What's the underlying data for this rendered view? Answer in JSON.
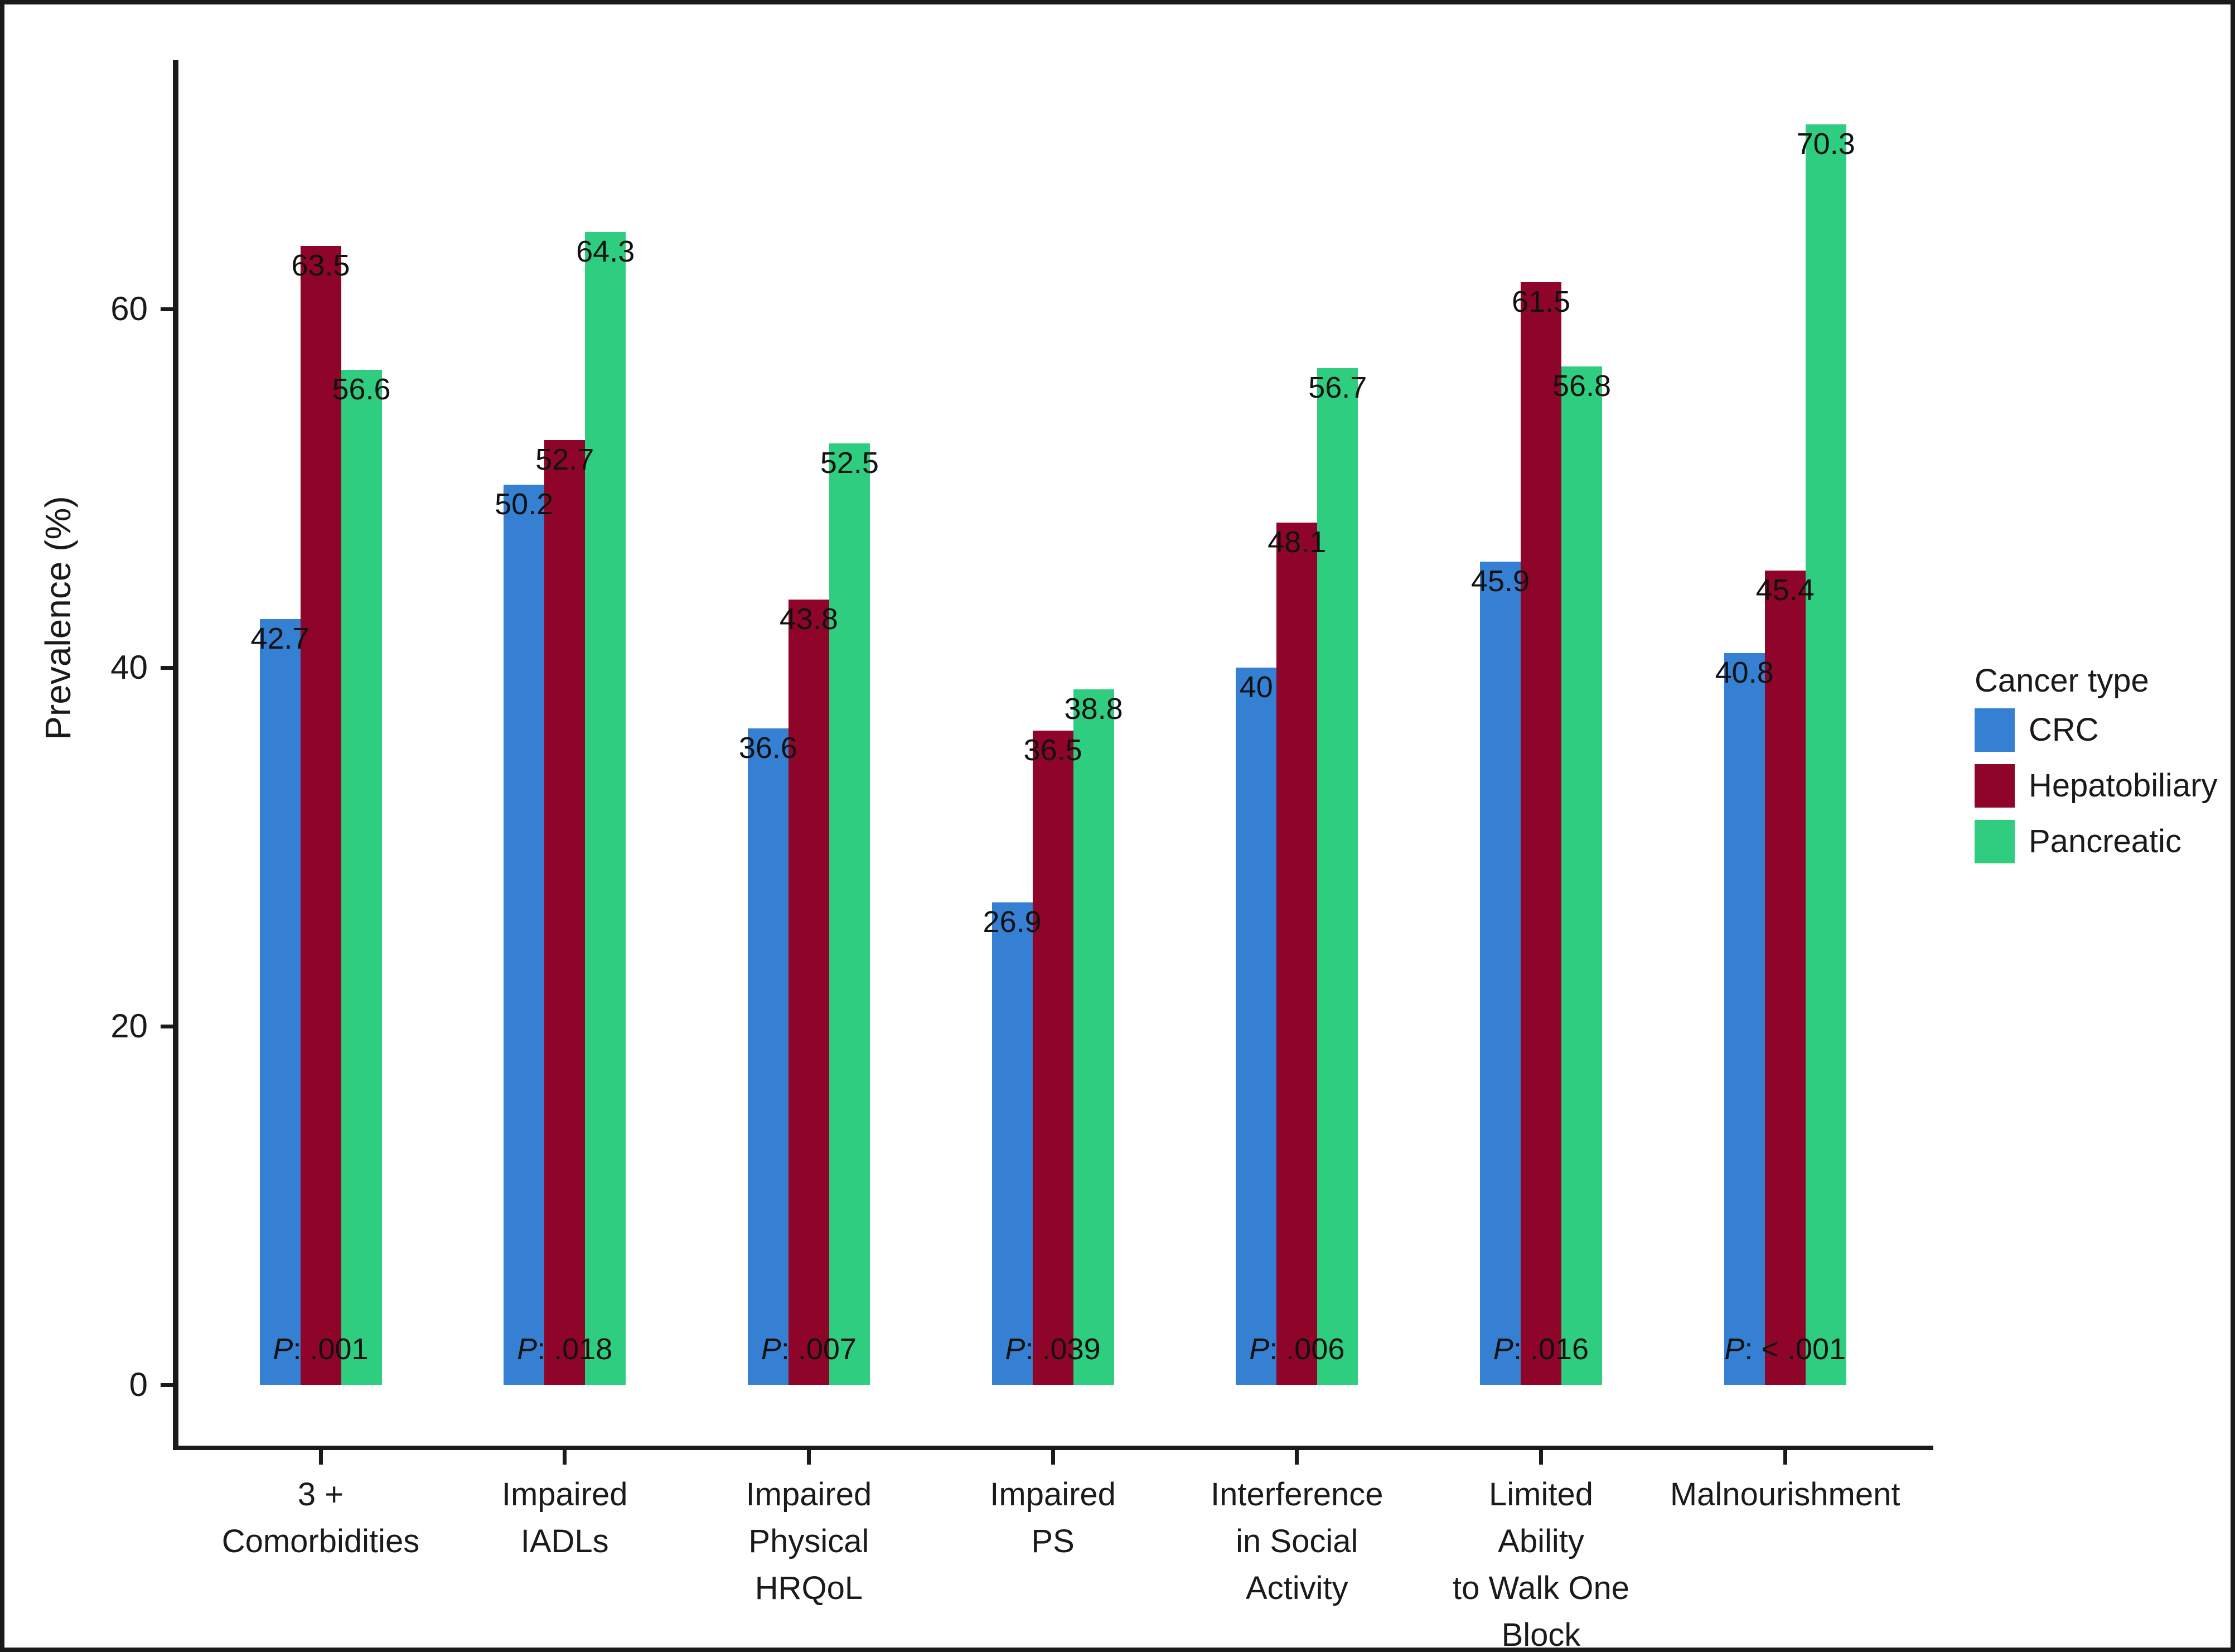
{
  "figure": {
    "y_axis_title": "Prevalence (%)",
    "legend_title": "Cancer type",
    "p_prefix": "P"
  },
  "chart_data": {
    "type": "bar",
    "title": "",
    "xlabel": "",
    "ylabel": "Prevalence (%)",
    "ylim": [
      0,
      74
    ],
    "yticks": [
      0,
      20,
      40,
      60
    ],
    "grid": false,
    "legend_position": "right",
    "legend_title": "Cancer type",
    "categories": [
      "3 +\nComorbidities",
      "Impaired\nIADLs",
      "Impaired\nPhysical\nHRQoL",
      "Impaired\nPS",
      "Interference\nin Social\nActivity",
      "Limited\nAbility\nto Walk One\nBlock",
      "Malnourishment"
    ],
    "series": [
      {
        "name": "CRC",
        "color": "#3580D2",
        "values": [
          42.7,
          50.2,
          36.6,
          26.9,
          40,
          45.9,
          40.8
        ],
        "value_labels": [
          "42.7",
          "50.2",
          "36.6",
          "26.9",
          "40",
          "45.9",
          "40.8"
        ]
      },
      {
        "name": "Hepatobiliary",
        "color": "#8E0529",
        "values": [
          63.5,
          52.7,
          43.8,
          36.5,
          48.1,
          61.5,
          45.4
        ],
        "value_labels": [
          "63.5",
          "52.7",
          "43.8",
          "36.5",
          "48.1",
          "61.5",
          "45.4"
        ]
      },
      {
        "name": "Pancreatic",
        "color": "#2FCD80",
        "values": [
          56.6,
          64.3,
          52.5,
          38.8,
          56.7,
          56.8,
          70.3
        ],
        "value_labels": [
          "56.6",
          "64.3",
          "52.5",
          "38.8",
          "56.7",
          "56.8",
          "70.3"
        ]
      }
    ],
    "p_values": [
      ".001",
      ".018",
      ".007",
      ".039",
      ".006",
      ".016",
      "< .001"
    ]
  }
}
